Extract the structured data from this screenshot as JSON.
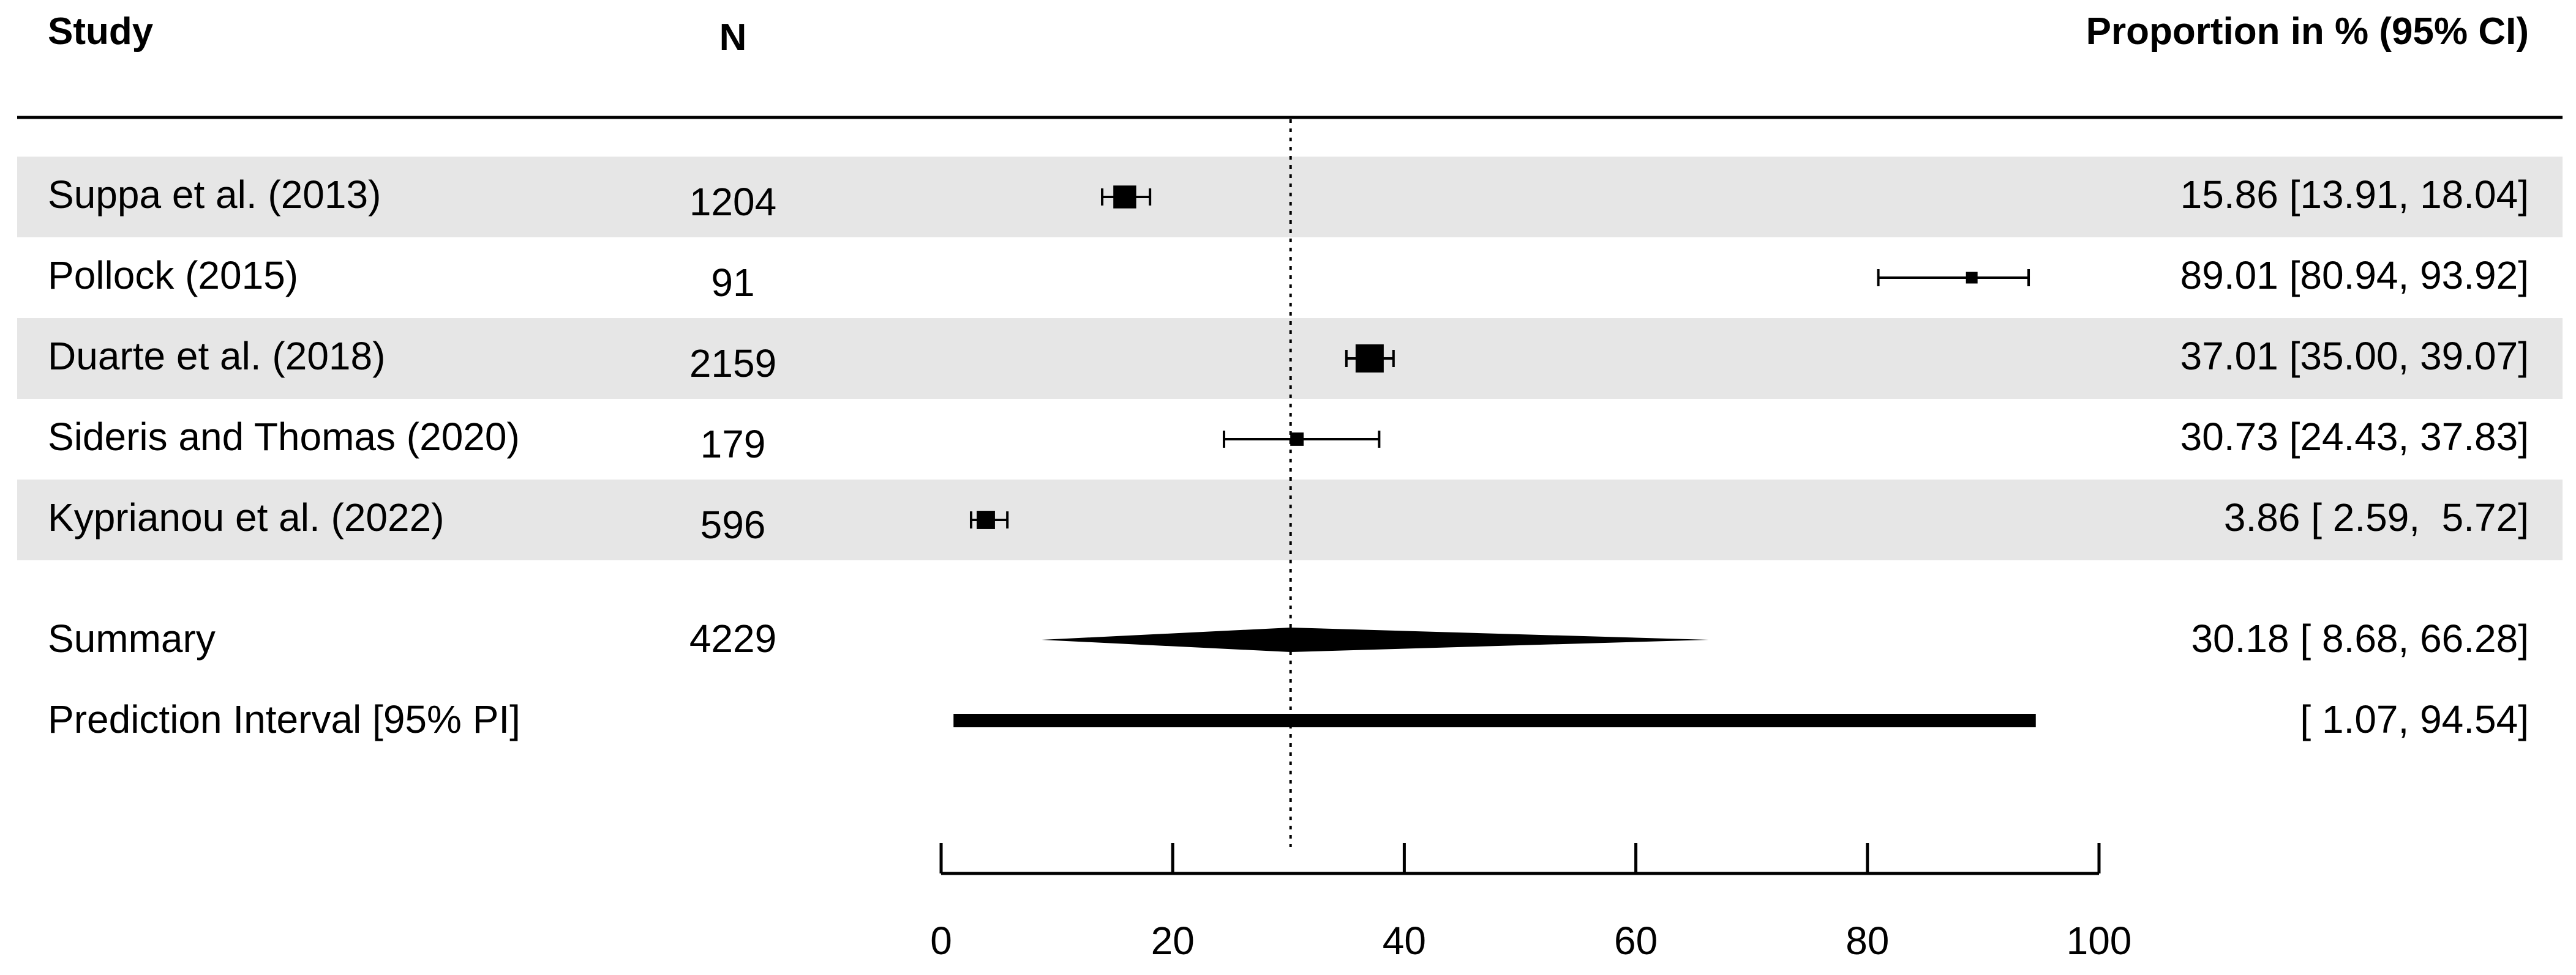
{
  "chart_data": {
    "type": "forest",
    "columns": {
      "study": "Study",
      "n": "N",
      "estimate": "Proportion in % (95% CI)"
    },
    "reference_line": 30.18,
    "xlim": [
      0,
      100
    ],
    "x_ticks": [
      "0",
      "20",
      "40",
      "60",
      "80",
      "100"
    ],
    "x_tick_values": [
      0,
      20,
      40,
      60,
      80,
      100
    ],
    "studies": [
      {
        "name": "Suppa et al. (2013)",
        "n": "1204",
        "est": 15.86,
        "lo": 13.91,
        "hi": 18.04,
        "ci_text": "15.86 [13.91, 18.04]",
        "weight": 1204
      },
      {
        "name": "Pollock (2015)",
        "n": "91",
        "est": 89.01,
        "lo": 80.94,
        "hi": 93.92,
        "ci_text": "89.01 [80.94, 93.92]",
        "weight": 91
      },
      {
        "name": "Duarte et al. (2018)",
        "n": "2159",
        "est": 37.01,
        "lo": 35.0,
        "hi": 39.07,
        "ci_text": "37.01 [35.00, 39.07]",
        "weight": 2159
      },
      {
        "name": "Sideris and Thomas (2020)",
        "n": "179",
        "est": 30.73,
        "lo": 24.43,
        "hi": 37.83,
        "ci_text": "30.73 [24.43, 37.83]",
        "weight": 179
      },
      {
        "name": "Kyprianou et al. (2022)",
        "n": "596",
        "est": 3.86,
        "lo": 2.59,
        "hi": 5.72,
        "ci_text": "3.86 [ 2.59,  5.72]",
        "weight": 596
      }
    ],
    "summary": {
      "name": "Summary",
      "n": "4229",
      "est": 30.18,
      "lo": 8.68,
      "hi": 66.28,
      "ci_text": "30.18 [ 8.68, 66.28]"
    },
    "prediction_interval": {
      "name": "Prediction Interval [95% PI]",
      "lo": 1.07,
      "hi": 94.54,
      "ci_text": "[ 1.07, 94.54]"
    },
    "colors": {
      "stripe": "#e6e6e6",
      "ink": "#000000"
    }
  }
}
